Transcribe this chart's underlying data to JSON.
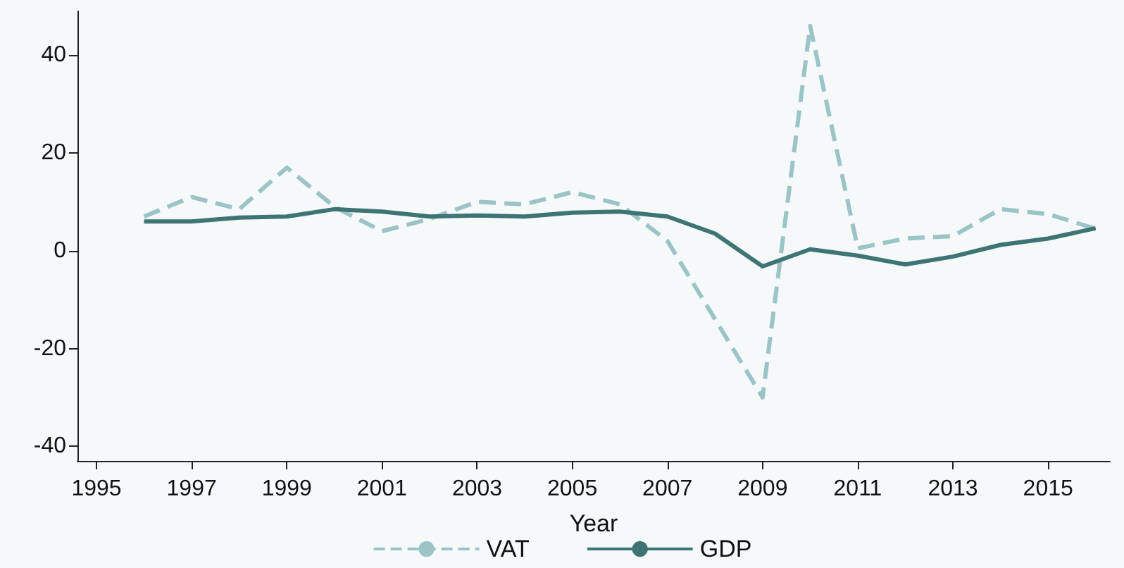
{
  "chart_data": {
    "type": "line",
    "xlabel": "Year",
    "x": [
      1996,
      1997,
      1998,
      1999,
      2000,
      2001,
      2002,
      2003,
      2004,
      2005,
      2006,
      2007,
      2008,
      2009,
      2010,
      2011,
      2012,
      2013,
      2014,
      2015,
      2016
    ],
    "series": [
      {
        "name": "VAT",
        "color": "#9cc4c7",
        "line_style": "dashed",
        "values": [
          7,
          11,
          8.5,
          17,
          9,
          4,
          6.5,
          10,
          9.5,
          12,
          9.5,
          2,
          -14,
          -30,
          46,
          0.5,
          2.5,
          3,
          8.5,
          7.5,
          4.5
        ]
      },
      {
        "name": "GDP",
        "color": "#3e7474",
        "line_style": "solid",
        "values": [
          6,
          6,
          6.8,
          7,
          8.5,
          8,
          7,
          7.2,
          7,
          7.8,
          8,
          7,
          3.5,
          -3.2,
          0.3,
          -1,
          -2.8,
          -1.2,
          1.2,
          2.5,
          4.6
        ]
      }
    ],
    "xlim": [
      1994.6,
      2016.3
    ],
    "xticks": [
      1995,
      1997,
      1999,
      2001,
      2003,
      2005,
      2007,
      2009,
      2011,
      2013,
      2015
    ],
    "ylim": [
      -43,
      49
    ],
    "yticks": [
      -40,
      -20,
      0,
      20,
      40
    ],
    "grid": false,
    "legend": "bottom",
    "marker": "none"
  }
}
